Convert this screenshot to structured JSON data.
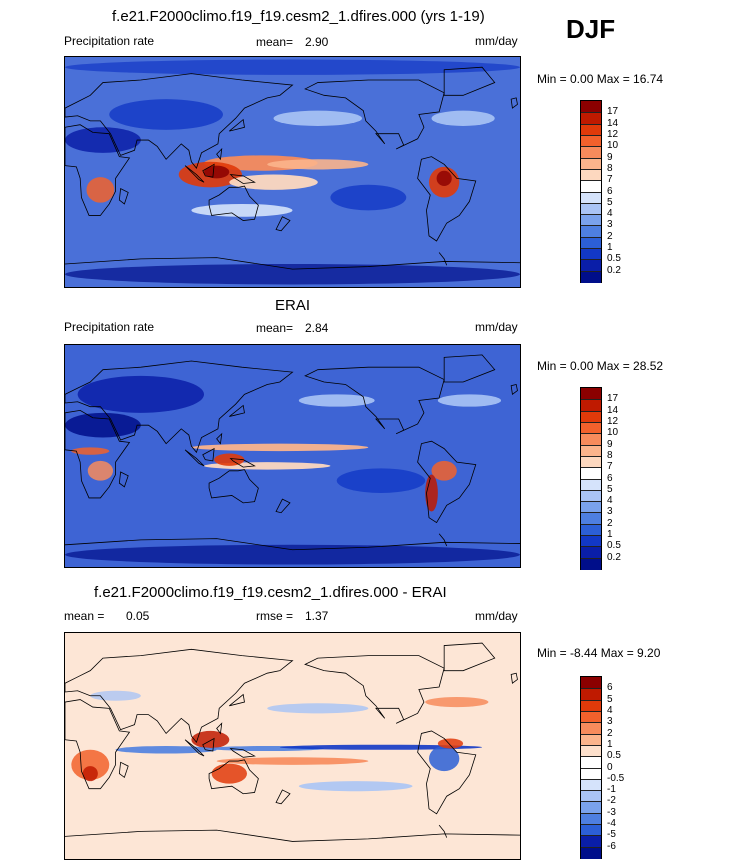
{
  "season": "DJF",
  "panels": [
    {
      "id": "model",
      "title": "f.e21.F2000climo.f19_f19.cesm2_1.dfires.000 (yrs 1-19)",
      "left_label": "Precipitation rate",
      "stat_label": "mean=",
      "stat_value": "2.90",
      "stat2_label": "",
      "stat2_value": "",
      "units": "mm/day",
      "range": "Min =   0.00 Max =  16.74",
      "background_color": "#4a70d8",
      "levels": [
        "17",
        "14",
        "12",
        "10",
        "9",
        "8",
        "7",
        "6",
        "5",
        "4",
        "3",
        "2",
        "1",
        "0.5",
        "0.2"
      ],
      "colors": [
        "#8b0000",
        "#bf1a00",
        "#e03a0a",
        "#f2612c",
        "#f78b5c",
        "#fbb48c",
        "#fdd8bf",
        "#ffffff",
        "#d5e3fb",
        "#aac4f5",
        "#7aa2ec",
        "#4e7fe0",
        "#2c5fd6",
        "#1238c6",
        "#0a1ea8",
        "#000e8a"
      ]
    },
    {
      "id": "obs",
      "title": "ERAI",
      "left_label": "Precipitation rate",
      "stat_label": "mean=",
      "stat_value": "2.84",
      "stat2_label": "",
      "stat2_value": "",
      "units": "mm/day",
      "range": "Min =   0.00 Max =  28.52",
      "background_color": "#3e64d4",
      "levels": [
        "17",
        "14",
        "12",
        "10",
        "9",
        "8",
        "7",
        "6",
        "5",
        "4",
        "3",
        "2",
        "1",
        "0.5",
        "0.2"
      ],
      "colors": [
        "#8b0000",
        "#bf1a00",
        "#e03a0a",
        "#f2612c",
        "#f78b5c",
        "#fbb48c",
        "#fdd8bf",
        "#ffffff",
        "#d5e3fb",
        "#aac4f5",
        "#7aa2ec",
        "#4e7fe0",
        "#2c5fd6",
        "#1238c6",
        "#0a1ea8",
        "#000e8a"
      ]
    },
    {
      "id": "diff",
      "title": "f.e21.F2000climo.f19_f19.cesm2_1.dfires.000 - ERAI",
      "left_label": "mean =",
      "stat_label": "0.05",
      "stat_value": "",
      "stat2_label": "rmse =",
      "stat2_value": "1.37",
      "units": "mm/day",
      "range": "Min =  -8.44 Max =   9.20",
      "background_color": "#fde6d6",
      "levels": [
        "6",
        "5",
        "4",
        "3",
        "2",
        "1",
        "0.5",
        "0",
        "-0.5",
        "-1",
        "-2",
        "-3",
        "-4",
        "-5",
        "-6"
      ],
      "colors": [
        "#8b0000",
        "#bf1a00",
        "#e03a0a",
        "#f2612c",
        "#f78b5c",
        "#fbb48c",
        "#fde0cc",
        "#ffffff",
        "#ffffff",
        "#d5e3fb",
        "#aac4f5",
        "#7aa2ec",
        "#4e7fe0",
        "#2c5fd6",
        "#0a1ea8",
        "#000e8a"
      ]
    }
  ]
}
